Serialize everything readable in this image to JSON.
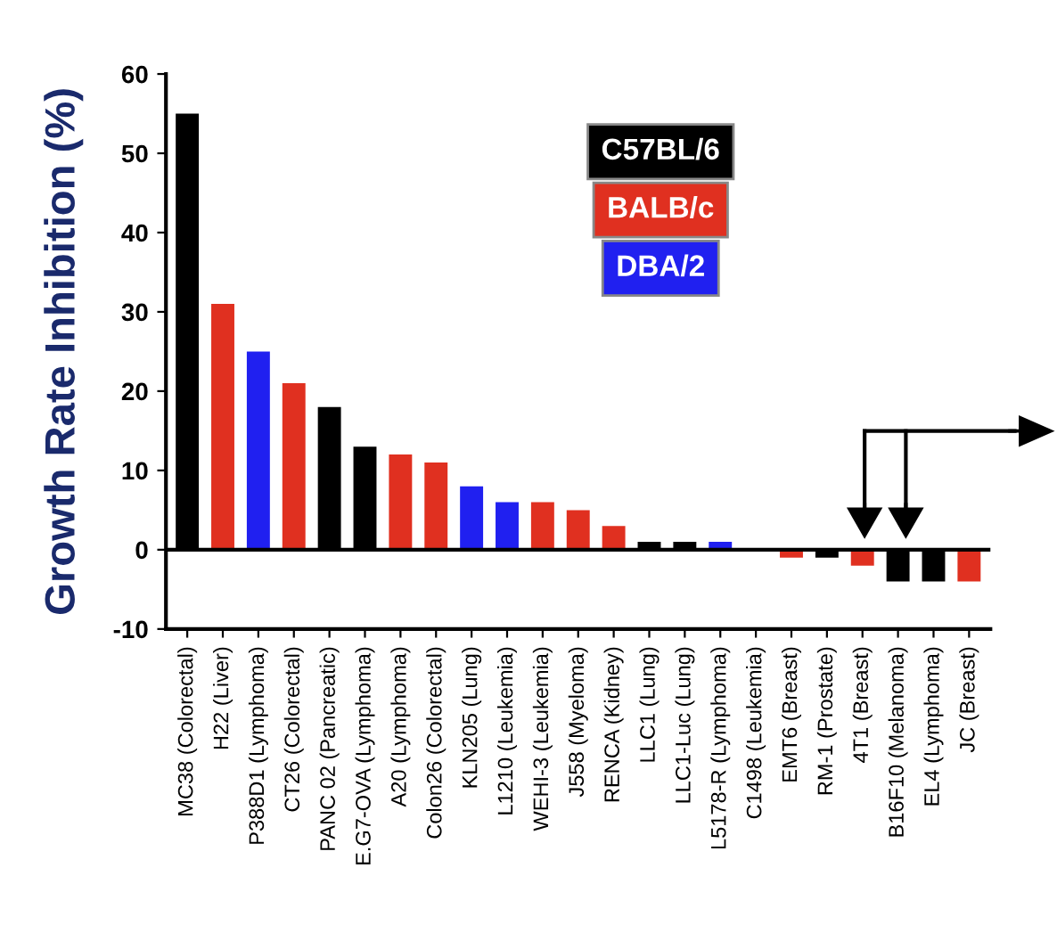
{
  "chart_data": {
    "type": "bar",
    "ylabel": "Growth Rate Inhibition (%)",
    "categories": [
      "MC38 (Colorectal)",
      "H22 (Liver)",
      "P388D1 (Lymphoma)",
      "CT26 (Colorectal)",
      "PANC 02 (Pancreatic)",
      "E.G7-OVA (Lymphoma)",
      "A20 (Lymphoma)",
      "Colon26 (Colorectal)",
      "KLN205 (Lung)",
      "L1210 (Leukemia)",
      "WEHI-3 (Leukemia)",
      "J558 (Myeloma)",
      "RENCA (Kidney)",
      "LLC1 (Lung)",
      "LLC1-Luc (Lung)",
      "L5178-R (Lymphoma)",
      "C1498 (Leukemia)",
      "EMT6 (Breast)",
      "RM-1 (Prostate)",
      "4T1 (Breast)",
      "B16F10 (Melanoma)",
      "EL4 (Lymphoma)",
      "JC (Breast)"
    ],
    "series": [
      {
        "name": "C57BL/6",
        "color": "#000000",
        "values": [
          55,
          null,
          null,
          null,
          18,
          13,
          null,
          null,
          null,
          null,
          null,
          null,
          null,
          1,
          1,
          null,
          0,
          null,
          -1,
          null,
          -4,
          -4,
          null
        ]
      },
      {
        "name": "BALB/c",
        "color": "#e03020",
        "values": [
          null,
          31,
          null,
          21,
          null,
          null,
          12,
          11,
          null,
          null,
          6,
          5,
          3,
          null,
          null,
          null,
          null,
          -1,
          null,
          -2,
          null,
          null,
          -4
        ]
      },
      {
        "name": "DBA/2",
        "color": "#2020f0",
        "values": [
          null,
          null,
          25,
          null,
          null,
          null,
          null,
          null,
          8,
          6,
          null,
          null,
          null,
          null,
          null,
          1,
          null,
          null,
          null,
          null,
          null,
          null,
          null
        ]
      }
    ],
    "ylim": [
      -10,
      60
    ],
    "yticks": [
      -10,
      0,
      10,
      20,
      30,
      40,
      50,
      60
    ],
    "grid": false,
    "legend": "top right",
    "ref_lines": [
      {
        "axis": "y",
        "value": 0,
        "color": "#000000"
      }
    ]
  }
}
